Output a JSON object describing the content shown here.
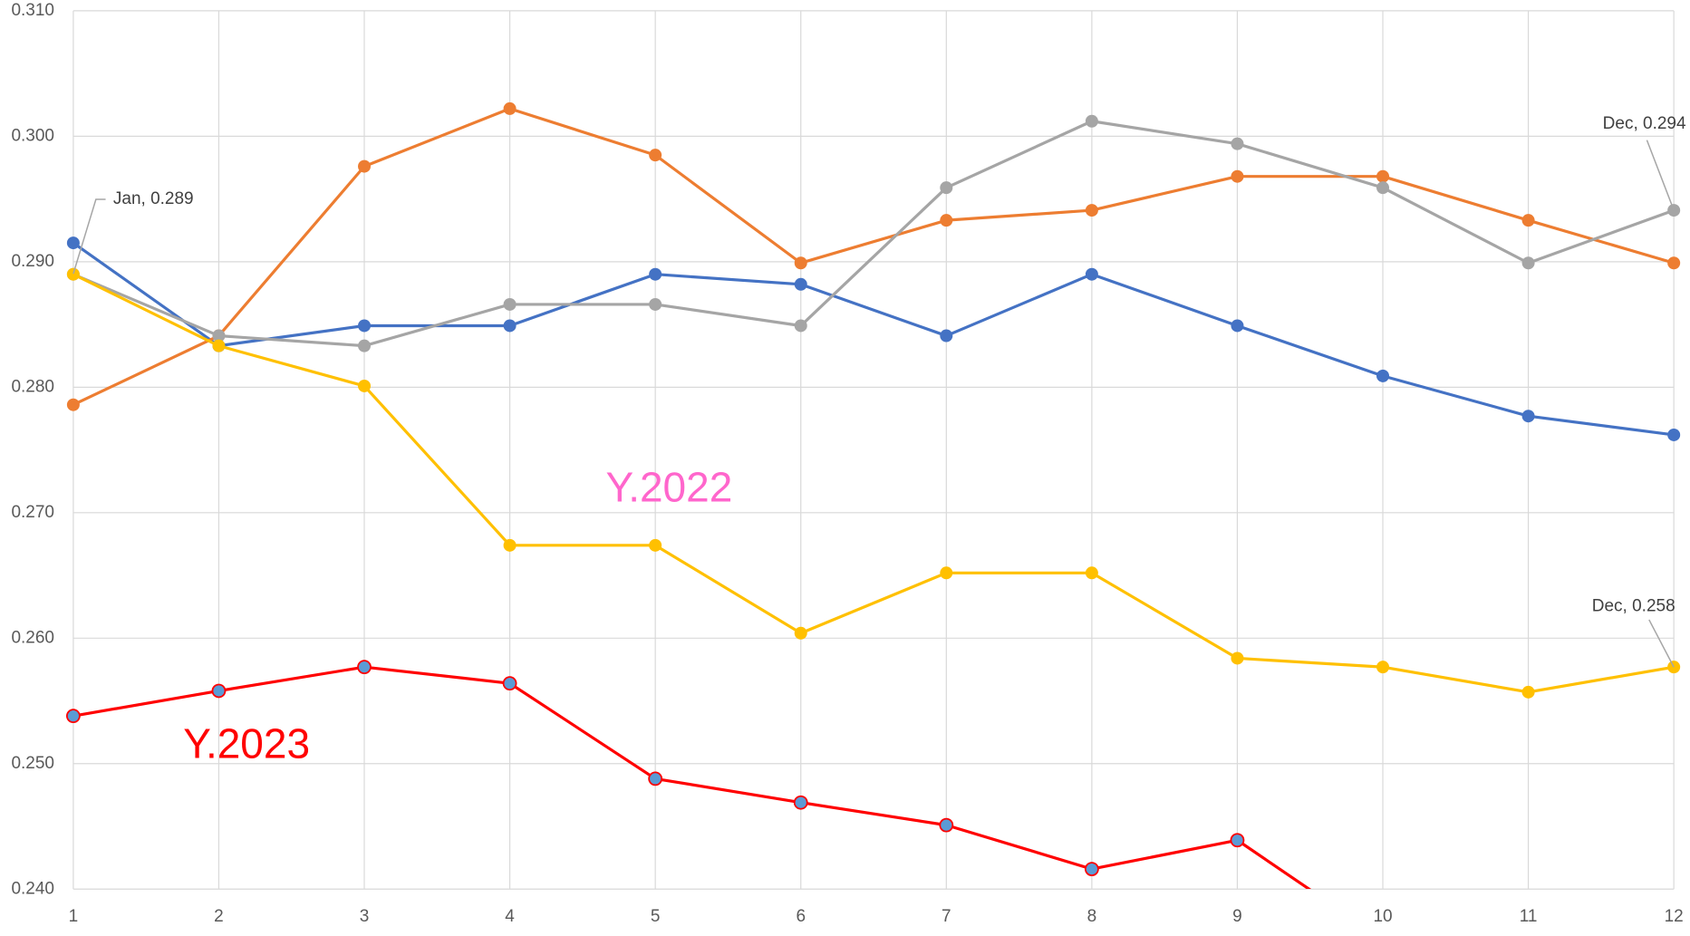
{
  "chart_data": {
    "type": "line",
    "categories": [
      "1",
      "2",
      "3",
      "4",
      "5",
      "6",
      "7",
      "8",
      "9",
      "10",
      "11",
      "12"
    ],
    "series": [
      {
        "color": "#4472c4",
        "values": [
          0.2915,
          0.2833,
          0.2849,
          0.2849,
          0.289,
          0.2882,
          0.2841,
          0.289,
          0.2849,
          0.2809,
          0.2777,
          0.2762
        ]
      },
      {
        "color": "#ed7d31",
        "values": [
          0.2786,
          0.2841,
          0.2976,
          0.3022,
          0.2985,
          0.2899,
          0.2933,
          0.2941,
          0.2968,
          0.2968,
          0.2933,
          0.2899
        ]
      },
      {
        "color": "#a5a5a5",
        "values": [
          0.289,
          0.2841,
          0.2833,
          0.2866,
          0.2866,
          0.2849,
          0.2959,
          0.3012,
          0.2994,
          0.2959,
          0.2899,
          0.2941
        ]
      },
      {
        "color": "#ffc000",
        "values": [
          0.289,
          0.2833,
          0.2801,
          0.2674,
          0.2674,
          0.2604,
          0.2652,
          0.2652,
          0.2584,
          0.2577,
          0.2557,
          0.2577
        ]
      },
      {
        "color": "#ff0000",
        "marker_fill": "#5b9bd5",
        "values": [
          0.2538,
          0.2558,
          0.2577,
          0.2564,
          0.2488,
          0.2469,
          0.2451,
          0.2416,
          0.2439,
          0.236,
          null,
          null
        ]
      }
    ],
    "ylim": [
      0.24,
      0.31
    ],
    "yticks": [
      {
        "value": 0.24,
        "label": "0.240"
      },
      {
        "value": 0.25,
        "label": "0.250"
      },
      {
        "value": 0.26,
        "label": "0.260"
      },
      {
        "value": 0.27,
        "label": "0.270"
      },
      {
        "value": 0.28,
        "label": "0.280"
      },
      {
        "value": 0.29,
        "label": "0.290"
      },
      {
        "value": 0.3,
        "label": "0.300"
      },
      {
        "value": 0.31,
        "label": "0.310"
      }
    ],
    "grid": true,
    "annotations": [
      {
        "text": "Jan, 0.289"
      },
      {
        "text": "Dec, 0.294"
      },
      {
        "text": "Dec, 0.258"
      },
      {
        "text": "Y.2022",
        "color": "#ff66cc"
      },
      {
        "text": "Y.2023",
        "color": "#ff0000"
      }
    ]
  }
}
